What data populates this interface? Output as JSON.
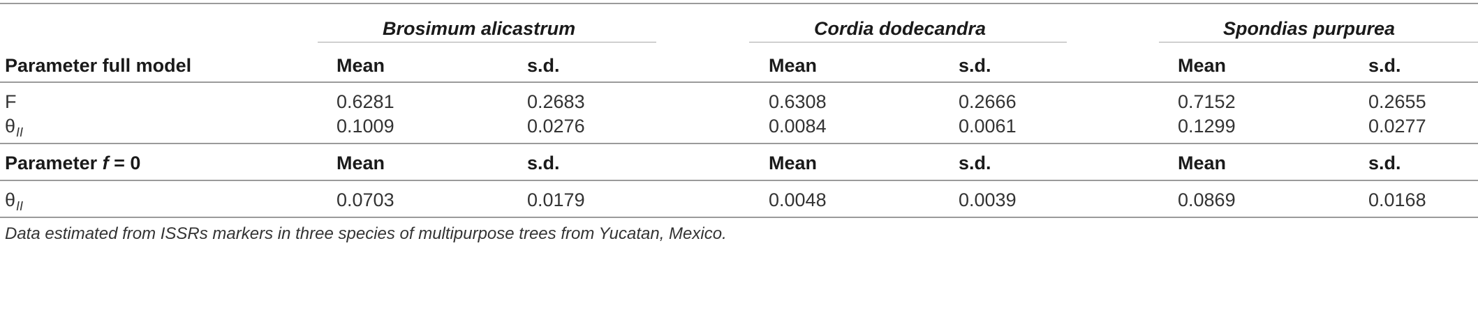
{
  "species": [
    "Brosimum alicastrum",
    "Cordia dodecandra",
    "Spondias purpurea"
  ],
  "section1": {
    "label": "Parameter full model",
    "col_mean": "Mean",
    "col_sd": "s.d.",
    "rows": [
      {
        "symbol": "F",
        "sub": "",
        "values": [
          "0.6281",
          "0.2683",
          "0.6308",
          "0.2666",
          "0.7152",
          "0.2655"
        ]
      },
      {
        "symbol": "θ",
        "sub": "II",
        "values": [
          "0.1009",
          "0.0276",
          "0.0084",
          "0.0061",
          "0.1299",
          "0.0277"
        ]
      }
    ]
  },
  "section2": {
    "label_prefix": "Parameter ",
    "label_var": "f",
    "label_suffix": " = 0",
    "col_mean": "Mean",
    "col_sd": "s.d.",
    "rows": [
      {
        "symbol": "θ",
        "sub": "II",
        "values": [
          "0.0703",
          "0.0179",
          "0.0048",
          "0.0039",
          "0.0869",
          "0.0168"
        ]
      }
    ]
  },
  "footnote": "Data estimated from ISSRs markers in three species of multipurpose trees from Yucatan, Mexico."
}
